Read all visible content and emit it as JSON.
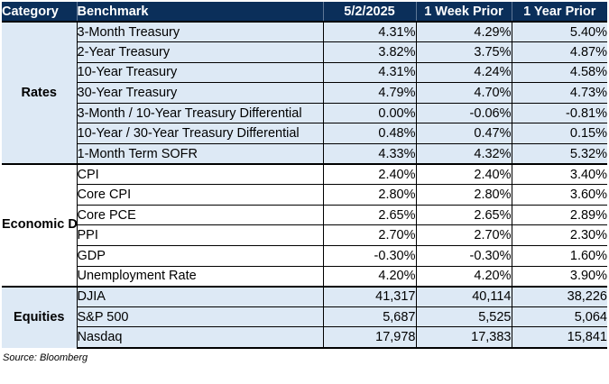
{
  "header": {
    "category": "Category",
    "benchmark": "Benchmark",
    "col1": "5/2/2025",
    "col2": "1 Week Prior",
    "col3": "1 Year Prior"
  },
  "sections": [
    {
      "category": "Rates",
      "rows": [
        {
          "benchmark": "3-Month Treasury",
          "current": "4.31%",
          "week_prior": "4.29%",
          "year_prior": "5.40%"
        },
        {
          "benchmark": "2-Year Treasury",
          "current": "3.82%",
          "week_prior": "3.75%",
          "year_prior": "4.87%"
        },
        {
          "benchmark": "10-Year Treasury",
          "current": "4.31%",
          "week_prior": "4.24%",
          "year_prior": "4.58%"
        },
        {
          "benchmark": "30-Year Treasury",
          "current": "4.79%",
          "week_prior": "4.70%",
          "year_prior": "4.73%"
        },
        {
          "benchmark": "3-Month / 10-Year Treasury Differential",
          "current": "0.00%",
          "week_prior": "-0.06%",
          "year_prior": "-0.81%"
        },
        {
          "benchmark": "10-Year / 30-Year Treasury Differential",
          "current": "0.48%",
          "week_prior": "0.47%",
          "year_prior": "0.15%"
        },
        {
          "benchmark": "1-Month Term SOFR",
          "current": "4.33%",
          "week_prior": "4.32%",
          "year_prior": "5.32%"
        }
      ]
    },
    {
      "category": "Economic Data",
      "rows": [
        {
          "benchmark": "CPI",
          "current": "2.40%",
          "week_prior": "2.40%",
          "year_prior": "3.40%"
        },
        {
          "benchmark": "Core CPI",
          "current": "2.80%",
          "week_prior": "2.80%",
          "year_prior": "3.60%"
        },
        {
          "benchmark": "Core PCE",
          "current": "2.65%",
          "week_prior": "2.65%",
          "year_prior": "2.89%"
        },
        {
          "benchmark": "PPI",
          "current": "2.70%",
          "week_prior": "2.70%",
          "year_prior": "2.30%"
        },
        {
          "benchmark": "GDP",
          "current": "-0.30%",
          "week_prior": "-0.30%",
          "year_prior": "1.60%"
        },
        {
          "benchmark": "Unemployment Rate",
          "current": "4.20%",
          "week_prior": "4.20%",
          "year_prior": "3.90%"
        }
      ]
    },
    {
      "category": "Equities",
      "rows": [
        {
          "benchmark": "DJIA",
          "current": "41,317",
          "week_prior": "40,114",
          "year_prior": "38,226"
        },
        {
          "benchmark": "S&P 500",
          "current": "5,687",
          "week_prior": "5,525",
          "year_prior": "5,064"
        },
        {
          "benchmark": "Nasdaq",
          "current": "17,978",
          "week_prior": "17,383",
          "year_prior": "15,841"
        }
      ]
    }
  ],
  "source": "Source: Bloomberg"
}
